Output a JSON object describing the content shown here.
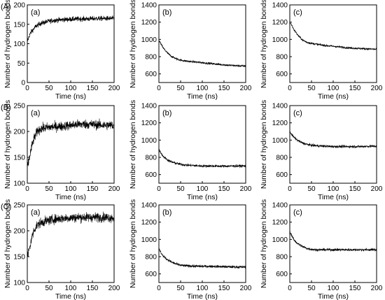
{
  "figure": {
    "row_labels": [
      "(A)",
      "(B)",
      "(C)"
    ],
    "panel_labels": [
      "(a)",
      "(b)",
      "(c)"
    ]
  },
  "chart_data": [
    {
      "row": "(A)",
      "panel": "(a)",
      "type": "line",
      "xlabel": "Time (ns)",
      "ylabel": "Number of hydrogen bonds",
      "xlim": [
        0,
        200
      ],
      "ylim": [
        0,
        200
      ],
      "xticks": [
        0,
        50,
        100,
        150,
        200
      ],
      "yticks": [
        0,
        50,
        100,
        150,
        200
      ],
      "series": [
        {
          "x": [
            0,
            5,
            10,
            20,
            30,
            40,
            50,
            60,
            80,
            100,
            120,
            140,
            160,
            180,
            200
          ],
          "y": [
            105,
            122,
            132,
            145,
            152,
            155,
            158,
            160,
            162,
            163,
            164,
            164,
            165,
            165,
            165
          ],
          "noise": 9
        }
      ]
    },
    {
      "row": "(A)",
      "panel": "(b)",
      "type": "line",
      "xlabel": "Time (ns)",
      "ylabel": "Number of hydrogen bonds",
      "xlim": [
        0,
        200
      ],
      "ylim": [
        500,
        1400
      ],
      "xticks": [
        0,
        50,
        100,
        150,
        200
      ],
      "yticks": [
        600,
        800,
        1000,
        1200,
        1400
      ],
      "series": [
        {
          "x": [
            0,
            5,
            10,
            20,
            30,
            40,
            50,
            60,
            80,
            100,
            120,
            140,
            160,
            180,
            200
          ],
          "y": [
            990,
            945,
            900,
            840,
            800,
            775,
            760,
            750,
            740,
            730,
            720,
            710,
            700,
            695,
            690
          ],
          "noise": 18
        }
      ]
    },
    {
      "row": "(A)",
      "panel": "(c)",
      "type": "line",
      "xlabel": "Time (ns)",
      "ylabel": "Number of hydrogen bonds",
      "xlim": [
        0,
        200
      ],
      "ylim": [
        500,
        1400
      ],
      "xticks": [
        0,
        50,
        100,
        150,
        200
      ],
      "yticks": [
        600,
        800,
        1000,
        1200,
        1400
      ],
      "series": [
        {
          "x": [
            0,
            5,
            10,
            20,
            30,
            40,
            50,
            60,
            80,
            100,
            120,
            140,
            160,
            180,
            200
          ],
          "y": [
            1200,
            1160,
            1110,
            1040,
            990,
            965,
            955,
            945,
            930,
            920,
            910,
            900,
            895,
            890,
            885
          ],
          "noise": 18
        }
      ]
    },
    {
      "row": "(B)",
      "panel": "(a)",
      "type": "line",
      "xlabel": "Time (ns)",
      "ylabel": "Number of hydrogen bonds",
      "xlim": [
        0,
        200
      ],
      "ylim": [
        100,
        250
      ],
      "xticks": [
        0,
        50,
        100,
        150,
        200
      ],
      "yticks": [
        100,
        150,
        200,
        250
      ],
      "series": [
        {
          "x": [
            0,
            5,
            10,
            15,
            20,
            25,
            30,
            40,
            50,
            60,
            80,
            100,
            120,
            140,
            160,
            180,
            200
          ],
          "y": [
            130,
            150,
            170,
            185,
            195,
            202,
            205,
            207,
            208,
            209,
            210,
            212,
            214,
            214,
            213,
            212,
            212
          ],
          "noise": 13
        }
      ]
    },
    {
      "row": "(B)",
      "panel": "(b)",
      "type": "line",
      "xlabel": "Time (ns)",
      "ylabel": "Number of hydrogen bonds",
      "xlim": [
        0,
        200
      ],
      "ylim": [
        500,
        1400
      ],
      "xticks": [
        0,
        50,
        100,
        150,
        200
      ],
      "yticks": [
        600,
        800,
        1000,
        1200,
        1400
      ],
      "series": [
        {
          "x": [
            0,
            5,
            10,
            20,
            30,
            40,
            50,
            60,
            80,
            100,
            120,
            140,
            160,
            180,
            200
          ],
          "y": [
            890,
            850,
            810,
            770,
            745,
            730,
            720,
            712,
            705,
            700,
            700,
            698,
            698,
            700,
            700
          ],
          "noise": 22
        }
      ]
    },
    {
      "row": "(B)",
      "panel": "(c)",
      "type": "line",
      "xlabel": "Time (ns)",
      "ylabel": "Number of hydrogen bonds",
      "xlim": [
        0,
        200
      ],
      "ylim": [
        500,
        1400
      ],
      "xticks": [
        0,
        50,
        100,
        150,
        200
      ],
      "yticks": [
        600,
        800,
        1000,
        1200,
        1400
      ],
      "series": [
        {
          "x": [
            0,
            5,
            10,
            20,
            30,
            40,
            50,
            60,
            80,
            100,
            120,
            140,
            160,
            180,
            200
          ],
          "y": [
            1100,
            1060,
            1030,
            990,
            965,
            950,
            940,
            935,
            930,
            925,
            925,
            925,
            925,
            928,
            930
          ],
          "noise": 22
        }
      ]
    },
    {
      "row": "(C)",
      "panel": "(a)",
      "type": "line",
      "xlabel": "Time (ns)",
      "ylabel": "Number of hydrogen bonds",
      "xlim": [
        0,
        200
      ],
      "ylim": [
        100,
        250
      ],
      "xticks": [
        0,
        50,
        100,
        150,
        200
      ],
      "yticks": [
        100,
        150,
        200,
        250
      ],
      "series": [
        {
          "x": [
            0,
            5,
            10,
            15,
            20,
            25,
            30,
            40,
            50,
            60,
            80,
            100,
            120,
            140,
            160,
            180,
            200
          ],
          "y": [
            150,
            165,
            185,
            200,
            208,
            212,
            215,
            218,
            220,
            222,
            224,
            225,
            226,
            226,
            226,
            226,
            225
          ],
          "noise": 13
        }
      ]
    },
    {
      "row": "(C)",
      "panel": "(b)",
      "type": "line",
      "xlabel": "Time (ns)",
      "ylabel": "Number of hydrogen bonds",
      "xlim": [
        0,
        200
      ],
      "ylim": [
        500,
        1400
      ],
      "xticks": [
        0,
        50,
        100,
        150,
        200
      ],
      "yticks": [
        600,
        800,
        1000,
        1200,
        1400
      ],
      "series": [
        {
          "x": [
            0,
            5,
            10,
            20,
            30,
            40,
            50,
            60,
            80,
            100,
            120,
            140,
            160,
            180,
            200
          ],
          "y": [
            890,
            845,
            805,
            765,
            735,
            715,
            700,
            695,
            690,
            688,
            688,
            685,
            682,
            680,
            680
          ],
          "noise": 22
        }
      ]
    },
    {
      "row": "(C)",
      "panel": "(c)",
      "type": "line",
      "xlabel": "Time (ns)",
      "ylabel": "Number of hydrogen bonds",
      "xlim": [
        0,
        200
      ],
      "ylim": [
        500,
        1400
      ],
      "xticks": [
        0,
        50,
        100,
        150,
        200
      ],
      "yticks": [
        600,
        800,
        1000,
        1200,
        1400
      ],
      "series": [
        {
          "x": [
            0,
            5,
            10,
            20,
            30,
            40,
            50,
            60,
            80,
            100,
            120,
            140,
            160,
            180,
            200
          ],
          "y": [
            1090,
            1040,
            990,
            945,
            915,
            895,
            885,
            880,
            880,
            880,
            880,
            880,
            880,
            880,
            880
          ],
          "noise": 22
        }
      ]
    }
  ]
}
